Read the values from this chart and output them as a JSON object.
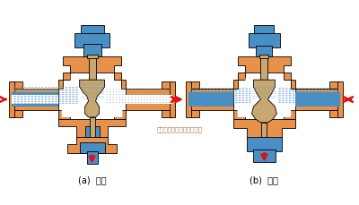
{
  "bg_color": "#FFFFFF",
  "orange": "#E8914A",
  "blue": "#4A8FC4",
  "tan": "#C8A870",
  "white": "#FFFFFF",
  "red": "#DD1111",
  "lbl_a": "(a)  分流",
  "lbl_b": "(b)  合流",
  "watermark": "多仪阀门（上海）有限公司",
  "fig_width": 4.0,
  "fig_height": 2.3,
  "dpi": 100
}
